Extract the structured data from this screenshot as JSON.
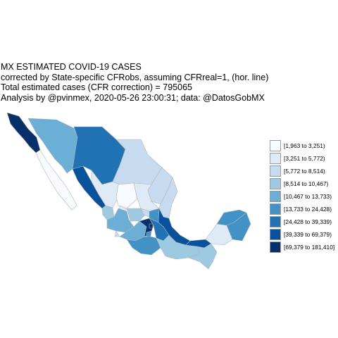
{
  "title": {
    "line1": "MX ESTIMATED COVID-19 CASES",
    "line2": "corrected by State-specific CFRobs, assuming CFRreal=1, (hor. line)",
    "line3": "Total estimated cases (CFR correction) = 795065",
    "line4": "Analysis by @pvinmex, 2020-05-26 23:00:31; data: @DatosGobMX"
  },
  "legend": [
    {
      "label": "[1,963 to 3,251)",
      "color": "#f7fbff"
    },
    {
      "label": "[3,251 to 5,772)",
      "color": "#deebf7"
    },
    {
      "label": "[5,772 to 8,514)",
      "color": "#c6dbef"
    },
    {
      "label": "[8,514 to 10,467)",
      "color": "#9ecae1"
    },
    {
      "label": "[10,467 to 13,733)",
      "color": "#6baed6"
    },
    {
      "label": "[13,733 to 24,428)",
      "color": "#4292c6"
    },
    {
      "label": "[24,428 to 39,339)",
      "color": "#2171b5"
    },
    {
      "label": "[39,339 to 69,379)",
      "color": "#08519c"
    },
    {
      "label": "[69,379 to 181,410]",
      "color": "#08306b"
    }
  ],
  "map": {
    "border_color": "#b5b5b5",
    "regions": [
      {
        "name": "baja-california",
        "bin": 8
      },
      {
        "name": "baja-california-sur",
        "bin": 0
      },
      {
        "name": "sonora",
        "bin": 4
      },
      {
        "name": "chihuahua",
        "bin": 6
      },
      {
        "name": "coahuila",
        "bin": 2
      },
      {
        "name": "nuevo-leon",
        "bin": 2
      },
      {
        "name": "tamaulipas",
        "bin": 2
      },
      {
        "name": "sinaloa",
        "bin": 7
      },
      {
        "name": "durango",
        "bin": 1
      },
      {
        "name": "zacatecas",
        "bin": 0
      },
      {
        "name": "san-luis-potosi",
        "bin": 1
      },
      {
        "name": "nayarit",
        "bin": 3
      },
      {
        "name": "aguascalientes",
        "bin": 1
      },
      {
        "name": "jalisco",
        "bin": 4
      },
      {
        "name": "guanajuato",
        "bin": 3
      },
      {
        "name": "queretaro",
        "bin": 2
      },
      {
        "name": "hidalgo",
        "bin": 5
      },
      {
        "name": "veracruz",
        "bin": 7
      },
      {
        "name": "colima",
        "bin": 2
      },
      {
        "name": "michoacan",
        "bin": 4
      },
      {
        "name": "estado-de-mexico",
        "bin": 8
      },
      {
        "name": "ciudad-de-mexico",
        "bin": 8
      },
      {
        "name": "tlaxcala",
        "bin": 5
      },
      {
        "name": "morelos",
        "bin": 5
      },
      {
        "name": "puebla",
        "bin": 6
      },
      {
        "name": "guerrero",
        "bin": 5
      },
      {
        "name": "oaxaca",
        "bin": 3
      },
      {
        "name": "tabasco",
        "bin": 7
      },
      {
        "name": "chiapas",
        "bin": 3
      },
      {
        "name": "campeche",
        "bin": 1
      },
      {
        "name": "yucatan",
        "bin": 5
      },
      {
        "name": "quintana-roo",
        "bin": 5
      }
    ]
  }
}
